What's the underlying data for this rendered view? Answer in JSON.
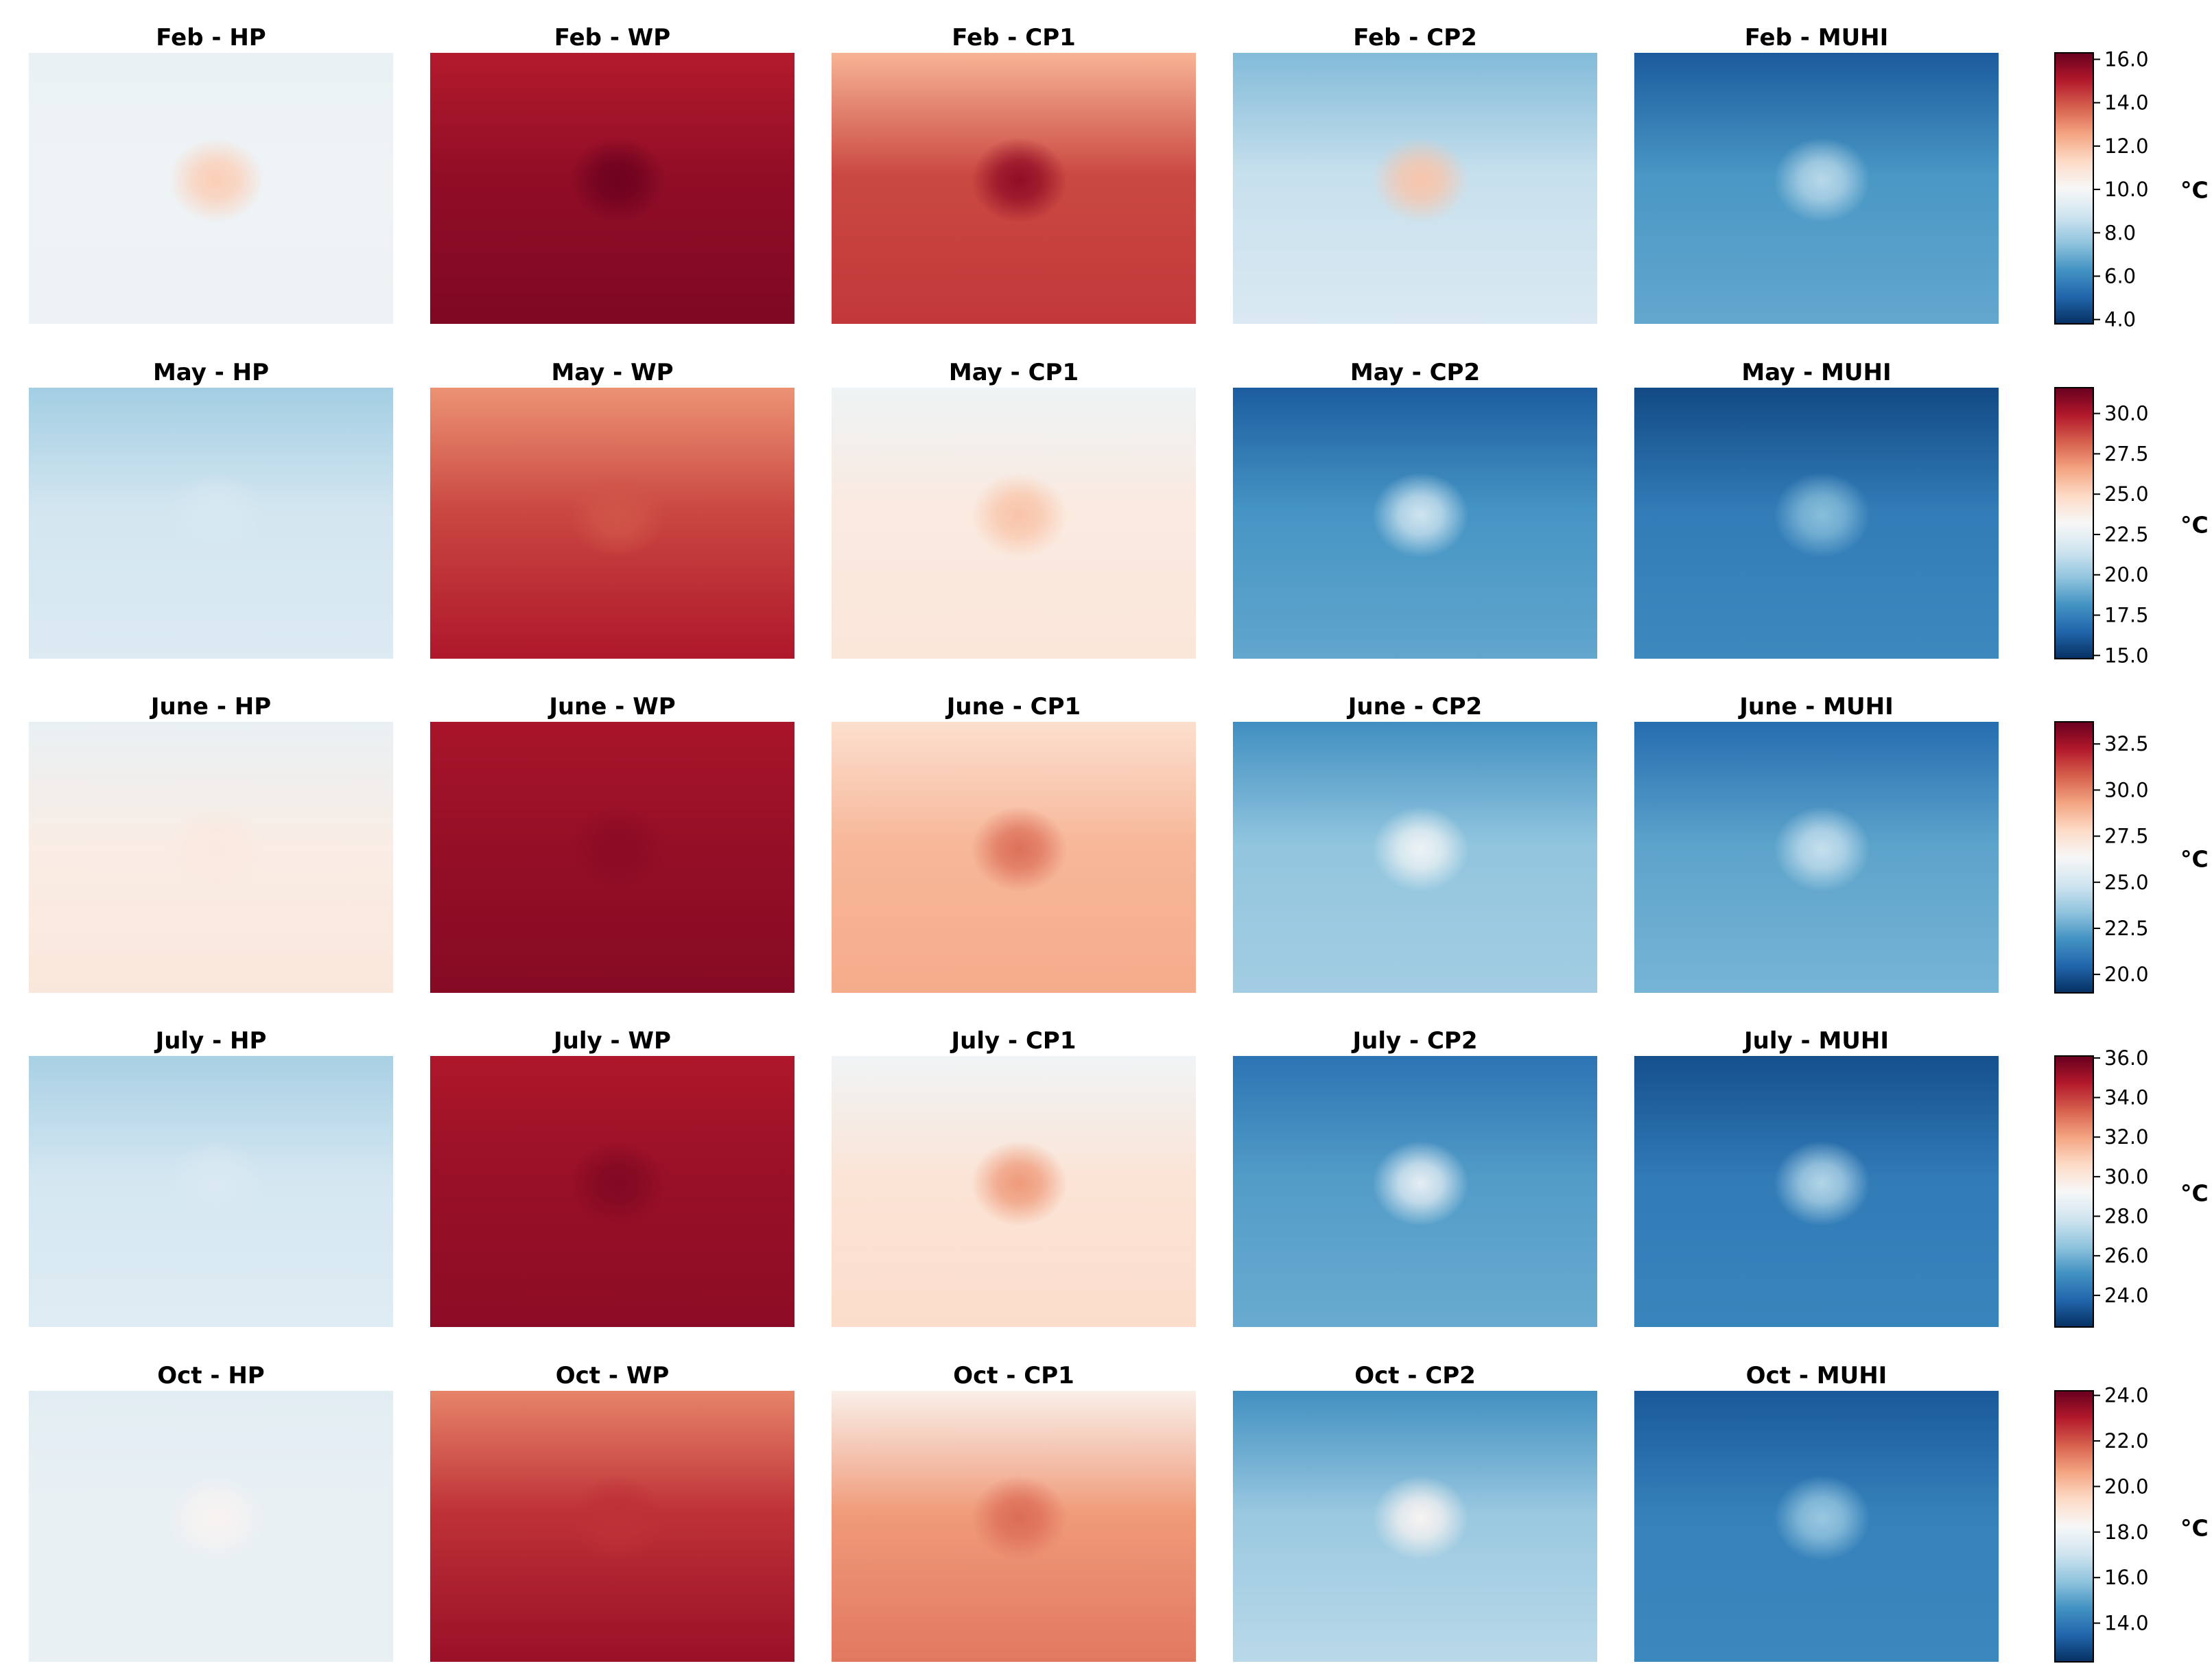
{
  "colormap": {
    "name": "RdBu_r",
    "stops": [
      "#053061",
      "#2166ac",
      "#4393c3",
      "#92c5de",
      "#d1e5f0",
      "#f7f7f7",
      "#fddbc7",
      "#f4a582",
      "#d6604d",
      "#b2182b",
      "#67001f"
    ]
  },
  "chart_data": {
    "type": "heatmap",
    "description_of_panels": "Land surface temperature maps; each panel shown as representative mean temperature with urban center",
    "columns": [
      "HP",
      "WP",
      "CP1",
      "CP2",
      "MUHI"
    ],
    "rows": [
      {
        "month": "Feb",
        "titles": [
          "Feb - HP",
          "Feb - WP",
          "Feb - CP1",
          "Feb - CP2",
          "Feb - MUHI"
        ],
        "colorbar": {
          "vmin": 3.8,
          "vmax": 16.3,
          "ticks": [
            "4.0",
            "6.0",
            "8.0",
            "10.0",
            "12.0",
            "14.0",
            "16.0"
          ],
          "unit": "°C"
        },
        "panels": [
          {
            "mean": 9.8,
            "urban": 11.6,
            "north": 9.6,
            "south": 9.7
          },
          {
            "mean": 15.6,
            "urban": 16.2,
            "north": 15.0,
            "south": 15.9
          },
          {
            "mean": 14.2,
            "urban": 15.6,
            "north": 12.2,
            "south": 14.5
          },
          {
            "mean": 8.6,
            "urban": 11.8,
            "north": 7.3,
            "south": 9.1
          },
          {
            "mean": 6.4,
            "urban": 8.3,
            "north": 4.8,
            "south": 6.8
          }
        ]
      },
      {
        "month": "May",
        "titles": [
          "May - HP",
          "May - WP",
          "May - CP1",
          "May - CP2",
          "May - MUHI"
        ],
        "colorbar": {
          "vmin": 14.8,
          "vmax": 31.6,
          "ticks": [
            "15.0",
            "17.5",
            "20.0",
            "22.5",
            "25.0",
            "27.5",
            "30.0"
          ],
          "unit": "°C"
        },
        "panels": [
          {
            "mean": 21.6,
            "urban": 21.8,
            "north": 20.3,
            "south": 22.0
          },
          {
            "mean": 28.8,
            "urban": 28.5,
            "north": 27.0,
            "south": 30.0
          },
          {
            "mean": 24.0,
            "urban": 25.6,
            "north": 22.8,
            "south": 24.2
          },
          {
            "mean": 18.2,
            "urban": 21.5,
            "north": 16.2,
            "south": 18.8
          },
          {
            "mean": 17.3,
            "urban": 19.6,
            "north": 15.6,
            "south": 17.8
          }
        ]
      },
      {
        "month": "June",
        "titles": [
          "June - HP",
          "June - WP",
          "June - CP1",
          "June - CP2",
          "June - MUHI"
        ],
        "colorbar": {
          "vmin": 19.0,
          "vmax": 33.7,
          "ticks": [
            "20.0",
            "22.5",
            "25.0",
            "27.5",
            "30.0",
            "32.5"
          ],
          "unit": "°C"
        },
        "panels": [
          {
            "mean": 26.9,
            "urban": 27.1,
            "north": 25.8,
            "south": 27.2
          },
          {
            "mean": 32.8,
            "urban": 33.0,
            "north": 32.4,
            "south": 33.1
          },
          {
            "mean": 28.8,
            "urban": 30.4,
            "north": 27.6,
            "south": 29.1
          },
          {
            "mean": 23.4,
            "urban": 26.0,
            "north": 21.8,
            "south": 23.8
          },
          {
            "mean": 22.4,
            "urban": 24.6,
            "north": 20.7,
            "south": 22.9
          }
        ]
      },
      {
        "month": "July",
        "titles": [
          "July - HP",
          "July - WP",
          "July - CP1",
          "July - CP2",
          "July - MUHI"
        ],
        "colorbar": {
          "vmin": 22.4,
          "vmax": 36.1,
          "ticks": [
            "24.0",
            "26.0",
            "28.0",
            "30.0",
            "32.0",
            "34.0",
            "36.0"
          ],
          "unit": "°C"
        },
        "panels": [
          {
            "mean": 28.0,
            "urban": 28.2,
            "north": 27.0,
            "south": 28.4
          },
          {
            "mean": 35.2,
            "urban": 35.6,
            "north": 34.8,
            "south": 35.4
          },
          {
            "mean": 30.2,
            "urban": 32.2,
            "north": 29.0,
            "south": 30.5
          },
          {
            "mean": 25.4,
            "urban": 28.6,
            "north": 24.2,
            "south": 25.8
          },
          {
            "mean": 24.4,
            "urban": 27.2,
            "north": 23.2,
            "south": 24.7
          }
        ]
      },
      {
        "month": "Oct",
        "titles": [
          "Oct - HP",
          "Oct - WP",
          "Oct - CP1",
          "Oct - CP2",
          "Oct - MUHI"
        ],
        "colorbar": {
          "vmin": 12.3,
          "vmax": 24.2,
          "ticks": [
            "14.0",
            "16.0",
            "18.0",
            "20.0",
            "22.0",
            "24.0"
          ],
          "unit": "°C"
        },
        "panels": [
          {
            "mean": 17.8,
            "urban": 18.4,
            "north": 17.6,
            "south": 17.8
          },
          {
            "mean": 22.6,
            "urban": 22.6,
            "north": 21.2,
            "south": 23.4
          },
          {
            "mean": 20.8,
            "urban": 21.6,
            "north": 18.6,
            "south": 21.4
          },
          {
            "mean": 16.0,
            "urban": 18.4,
            "north": 14.6,
            "south": 16.6
          },
          {
            "mean": 14.2,
            "urban": 16.0,
            "north": 13.2,
            "south": 14.4
          }
        ]
      }
    ]
  }
}
